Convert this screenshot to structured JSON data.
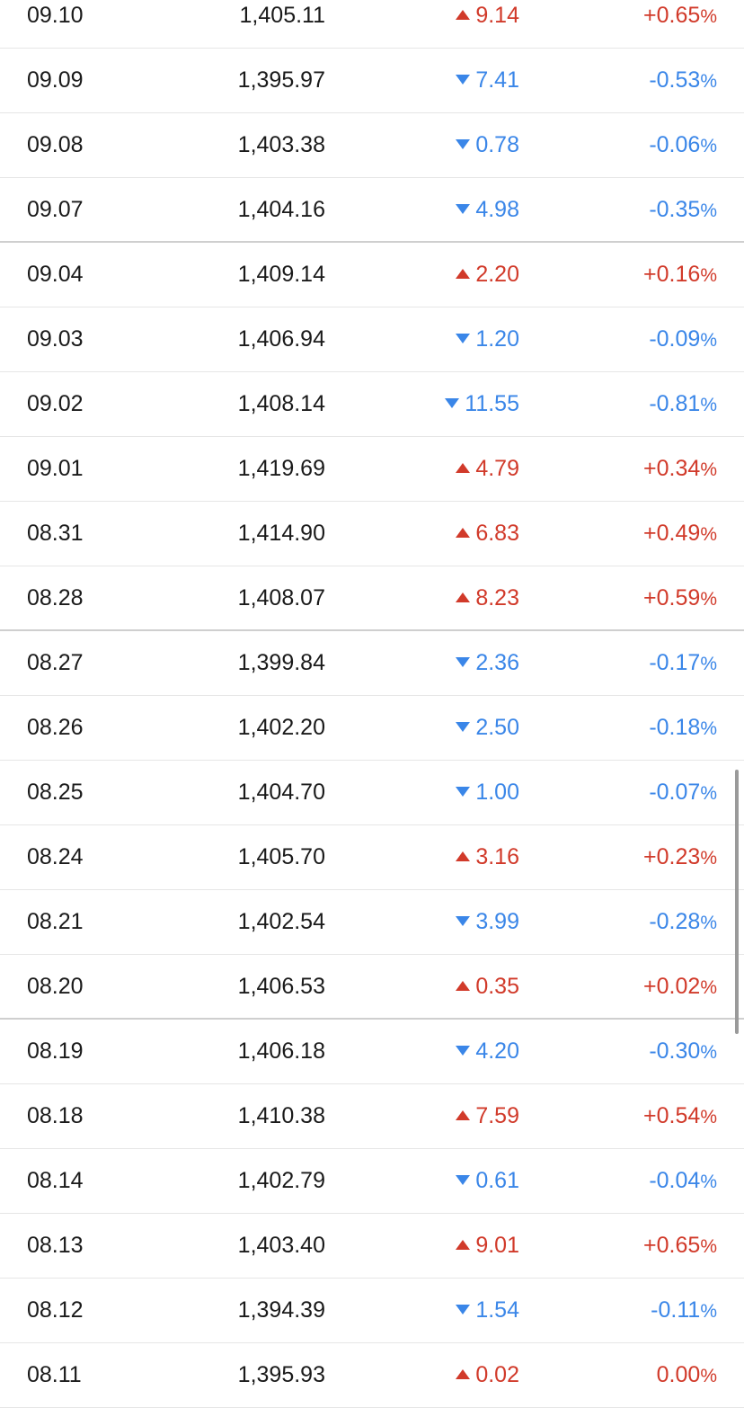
{
  "table": {
    "rows": [
      {
        "date": "09.10",
        "close": "1,405.11",
        "change": "9.14",
        "pct": "+0.65",
        "dir": "up"
      },
      {
        "date": "09.09",
        "close": "1,395.97",
        "change": "7.41",
        "pct": "-0.53",
        "dir": "down"
      },
      {
        "date": "09.08",
        "close": "1,403.38",
        "change": "0.78",
        "pct": "-0.06",
        "dir": "down"
      },
      {
        "date": "09.07",
        "close": "1,404.16",
        "change": "4.98",
        "pct": "-0.35",
        "dir": "down",
        "week_end": true
      },
      {
        "date": "09.04",
        "close": "1,409.14",
        "change": "2.20",
        "pct": "+0.16",
        "dir": "up"
      },
      {
        "date": "09.03",
        "close": "1,406.94",
        "change": "1.20",
        "pct": "-0.09",
        "dir": "down"
      },
      {
        "date": "09.02",
        "close": "1,408.14",
        "change": "11.55",
        "pct": "-0.81",
        "dir": "down"
      },
      {
        "date": "09.01",
        "close": "1,419.69",
        "change": "4.79",
        "pct": "+0.34",
        "dir": "up"
      },
      {
        "date": "08.31",
        "close": "1,414.90",
        "change": "6.83",
        "pct": "+0.49",
        "dir": "up"
      },
      {
        "date": "08.28",
        "close": "1,408.07",
        "change": "8.23",
        "pct": "+0.59",
        "dir": "up",
        "week_end": true
      },
      {
        "date": "08.27",
        "close": "1,399.84",
        "change": "2.36",
        "pct": "-0.17",
        "dir": "down"
      },
      {
        "date": "08.26",
        "close": "1,402.20",
        "change": "2.50",
        "pct": "-0.18",
        "dir": "down"
      },
      {
        "date": "08.25",
        "close": "1,404.70",
        "change": "1.00",
        "pct": "-0.07",
        "dir": "down"
      },
      {
        "date": "08.24",
        "close": "1,405.70",
        "change": "3.16",
        "pct": "+0.23",
        "dir": "up"
      },
      {
        "date": "08.21",
        "close": "1,402.54",
        "change": "3.99",
        "pct": "-0.28",
        "dir": "down"
      },
      {
        "date": "08.20",
        "close": "1,406.53",
        "change": "0.35",
        "pct": "+0.02",
        "dir": "up",
        "week_end": true
      },
      {
        "date": "08.19",
        "close": "1,406.18",
        "change": "4.20",
        "pct": "-0.30",
        "dir": "down"
      },
      {
        "date": "08.18",
        "close": "1,410.38",
        "change": "7.59",
        "pct": "+0.54",
        "dir": "up"
      },
      {
        "date": "08.14",
        "close": "1,402.79",
        "change": "0.61",
        "pct": "-0.04",
        "dir": "down"
      },
      {
        "date": "08.13",
        "close": "1,403.40",
        "change": "9.01",
        "pct": "+0.65",
        "dir": "up"
      },
      {
        "date": "08.12",
        "close": "1,394.39",
        "change": "1.54",
        "pct": "-0.11",
        "dir": "down"
      },
      {
        "date": "08.11",
        "close": "1,395.93",
        "change": "0.02",
        "pct": "0.00",
        "dir": "up"
      }
    ]
  },
  "percent_symbol": "%",
  "icons": {
    "up": "triangle-up-icon",
    "down": "triangle-down-icon"
  },
  "colors": {
    "up": "#d13a2a",
    "down": "#3a86e8",
    "text": "#1a1a1a"
  }
}
